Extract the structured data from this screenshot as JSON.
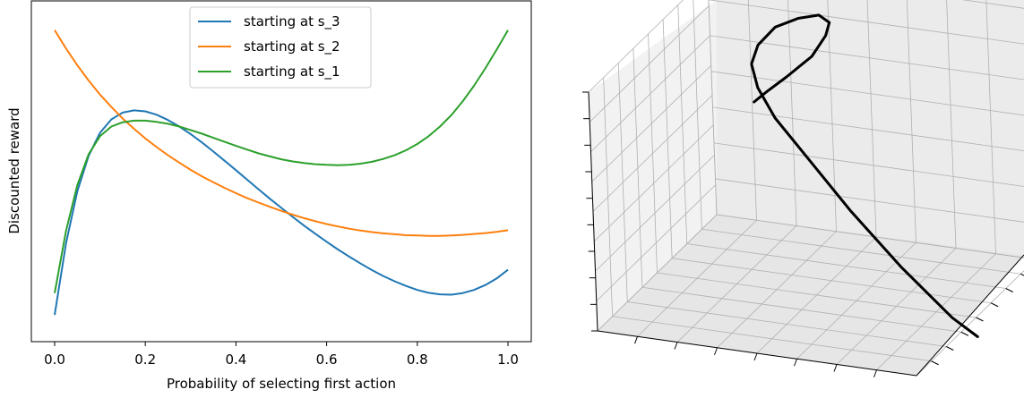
{
  "chart_data": [
    {
      "type": "line",
      "title": "",
      "xlabel": "Probability of selecting first action",
      "ylabel": "Discounted reward",
      "xlim": [
        -0.05,
        1.05
      ],
      "ylim": [
        0,
        1
      ],
      "y_tick_labels_shown": false,
      "xticks": [
        0.0,
        0.2,
        0.4,
        0.6,
        0.8,
        1.0
      ],
      "xtick_labels": [
        "0.0",
        "0.2",
        "0.4",
        "0.6",
        "0.8",
        "1.0"
      ],
      "legend_position": "upper center",
      "grid": false,
      "series": [
        {
          "name": "starting at s_3",
          "color": "#1f77b4",
          "x": [
            0,
            0.025,
            0.05,
            0.075,
            0.1,
            0.125,
            0.15,
            0.175,
            0.2,
            0.225,
            0.25,
            0.275,
            0.3,
            0.325,
            0.35,
            0.375,
            0.4,
            0.425,
            0.45,
            0.475,
            0.5,
            0.525,
            0.55,
            0.575,
            0.6,
            0.625,
            0.65,
            0.675,
            0.7,
            0.725,
            0.75,
            0.775,
            0.8,
            0.825,
            0.85,
            0.875,
            0.9,
            0.925,
            0.95,
            0.975,
            1
          ],
          "y": [
            0.04,
            0.27,
            0.437,
            0.551,
            0.625,
            0.668,
            0.69,
            0.697,
            0.694,
            0.683,
            0.666,
            0.645,
            0.621,
            0.594,
            0.565,
            0.535,
            0.505,
            0.474,
            0.443,
            0.413,
            0.384,
            0.355,
            0.327,
            0.301,
            0.275,
            0.25,
            0.227,
            0.205,
            0.184,
            0.165,
            0.148,
            0.133,
            0.12,
            0.111,
            0.106,
            0.105,
            0.11,
            0.12,
            0.136,
            0.157,
            0.185
          ]
        },
        {
          "name": "starting at s_2",
          "color": "#ff7f0e",
          "x": [
            0,
            0.025,
            0.05,
            0.075,
            0.1,
            0.125,
            0.15,
            0.175,
            0.2,
            0.225,
            0.25,
            0.275,
            0.3,
            0.325,
            0.35,
            0.375,
            0.4,
            0.425,
            0.45,
            0.475,
            0.5,
            0.525,
            0.55,
            0.575,
            0.6,
            0.625,
            0.65,
            0.675,
            0.7,
            0.725,
            0.75,
            0.775,
            0.8,
            0.825,
            0.85,
            0.875,
            0.9,
            0.925,
            0.95,
            0.975,
            1
          ],
          "y": [
            0.955,
            0.896,
            0.842,
            0.793,
            0.748,
            0.708,
            0.671,
            0.638,
            0.607,
            0.579,
            0.553,
            0.529,
            0.506,
            0.485,
            0.466,
            0.448,
            0.431,
            0.415,
            0.401,
            0.387,
            0.374,
            0.362,
            0.351,
            0.341,
            0.332,
            0.324,
            0.317,
            0.311,
            0.306,
            0.302,
            0.299,
            0.296,
            0.295,
            0.294,
            0.294,
            0.295,
            0.297,
            0.3,
            0.303,
            0.307,
            0.312
          ]
        },
        {
          "name": "starting at s_1",
          "color": "#2ca02c",
          "x": [
            0,
            0.025,
            0.05,
            0.075,
            0.1,
            0.125,
            0.15,
            0.175,
            0.2,
            0.225,
            0.25,
            0.275,
            0.3,
            0.325,
            0.35,
            0.375,
            0.4,
            0.425,
            0.45,
            0.475,
            0.5,
            0.525,
            0.55,
            0.575,
            0.6,
            0.625,
            0.65,
            0.675,
            0.7,
            0.725,
            0.75,
            0.775,
            0.8,
            0.825,
            0.85,
            0.875,
            0.9,
            0.925,
            0.95,
            0.975,
            1
          ],
          "y": [
            0.11,
            0.31,
            0.457,
            0.556,
            0.614,
            0.645,
            0.659,
            0.664,
            0.664,
            0.66,
            0.654,
            0.645,
            0.634,
            0.622,
            0.609,
            0.596,
            0.583,
            0.571,
            0.559,
            0.549,
            0.54,
            0.533,
            0.528,
            0.524,
            0.522,
            0.521,
            0.522,
            0.526,
            0.532,
            0.541,
            0.553,
            0.569,
            0.589,
            0.614,
            0.645,
            0.682,
            0.726,
            0.776,
            0.832,
            0.892,
            0.955
          ]
        }
      ]
    },
    {
      "type": "line",
      "projection": "3d",
      "title": "",
      "xlabel": "",
      "ylabel": "",
      "zlabel": "",
      "tick_labels_shown": false,
      "grid": true,
      "series": [
        {
          "name": "",
          "color": "#000000",
          "x": [
            0.05,
            0.1,
            0.18,
            0.28,
            0.34,
            0.36,
            0.33,
            0.26,
            0.18,
            0.12,
            0.1,
            0.13,
            0.2,
            0.3,
            0.4,
            0.5,
            0.6,
            0.7,
            0.8,
            0.9,
            1.0
          ],
          "y": [
            0.75,
            0.73,
            0.7,
            0.67,
            0.62,
            0.58,
            0.52,
            0.47,
            0.43,
            0.4,
            0.37,
            0.33,
            0.3,
            0.27,
            0.24,
            0.21,
            0.18,
            0.15,
            0.12,
            0.09,
            0.06
          ],
          "z": [
            0.62,
            0.66,
            0.72,
            0.8,
            0.88,
            0.93,
            0.96,
            0.95,
            0.92,
            0.86,
            0.8,
            0.73,
            0.64,
            0.55,
            0.46,
            0.37,
            0.29,
            0.21,
            0.14,
            0.07,
            0.02
          ]
        }
      ]
    }
  ]
}
